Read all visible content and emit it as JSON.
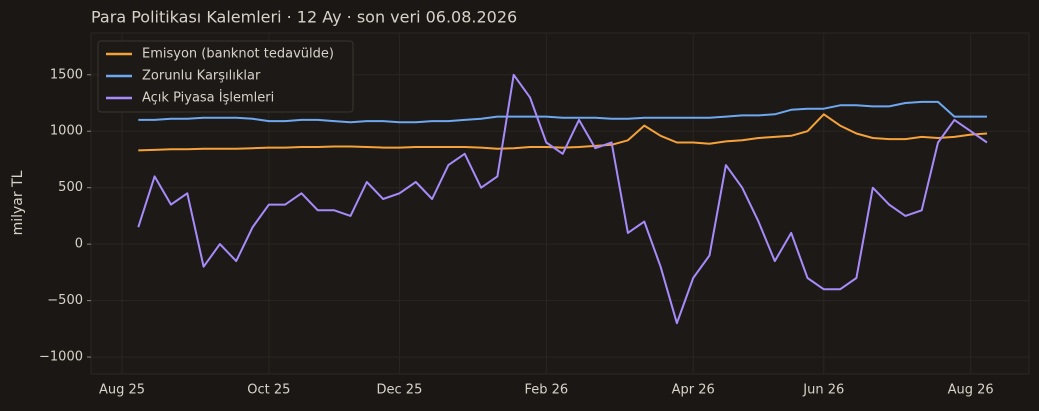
{
  "chart_data": {
    "type": "line",
    "title": "Para Politikası Kalemleri · 12 Ay · son veri 06.08.2026",
    "y_label": "milyar TL",
    "categories": [
      "Aug 25",
      null,
      null,
      null,
      null,
      null,
      null,
      null,
      null,
      "Oct 25",
      null,
      null,
      null,
      null,
      null,
      null,
      null,
      "Dec 25",
      null,
      null,
      null,
      null,
      null,
      null,
      null,
      null,
      "Feb 26",
      null,
      null,
      null,
      null,
      null,
      null,
      null,
      null,
      "Apr 26",
      null,
      null,
      null,
      null,
      null,
      null,
      null,
      "Jun 26",
      null,
      null,
      null,
      null,
      null,
      null,
      null,
      null,
      "Aug 26",
      null
    ],
    "series": [
      {
        "name": "Emisyon (banknot tedavülde)",
        "color": "#f5a23a",
        "values": [
          null,
          830,
          835,
          840,
          840,
          845,
          845,
          845,
          850,
          855,
          855,
          860,
          860,
          865,
          865,
          860,
          855,
          855,
          860,
          860,
          860,
          860,
          855,
          845,
          850,
          860,
          860,
          855,
          860,
          870,
          880,
          920,
          1050,
          960,
          900,
          900,
          890,
          910,
          920,
          940,
          950,
          960,
          1000,
          1150,
          1050,
          980,
          940,
          930,
          930,
          950,
          940,
          950,
          970,
          980
        ]
      },
      {
        "name": "Zorunlu Karşılıklar",
        "color": "#6ea8f0",
        "values": [
          null,
          1100,
          1100,
          1110,
          1110,
          1120,
          1120,
          1120,
          1110,
          1090,
          1090,
          1100,
          1100,
          1090,
          1080,
          1090,
          1090,
          1080,
          1080,
          1090,
          1090,
          1100,
          1110,
          1130,
          1130,
          1130,
          1130,
          1120,
          1120,
          1120,
          1110,
          1110,
          1120,
          1120,
          1120,
          1120,
          1120,
          1130,
          1140,
          1140,
          1150,
          1190,
          1200,
          1200,
          1230,
          1230,
          1220,
          1220,
          1250,
          1260,
          1260,
          1130,
          1130,
          1130
        ]
      },
      {
        "name": "Açık Piyasa İşlemleri",
        "color": "#a78bfa",
        "values": [
          null,
          150,
          600,
          350,
          450,
          -200,
          0,
          -150,
          150,
          350,
          350,
          450,
          300,
          300,
          250,
          550,
          400,
          450,
          550,
          400,
          700,
          800,
          500,
          600,
          1500,
          1300,
          900,
          800,
          1100,
          850,
          900,
          100,
          200,
          -200,
          -700,
          -300,
          -100,
          700,
          500,
          200,
          -150,
          100,
          -300,
          -400,
          -400,
          -300,
          500,
          350,
          250,
          300,
          900,
          1100,
          1000,
          900
        ]
      }
    ],
    "ylim": [
      -1150,
      1870
    ],
    "yticks": [
      {
        "value": -1000,
        "label": "−1000"
      },
      {
        "value": -500,
        "label": "−500"
      },
      0,
      500,
      1000,
      1500
    ],
    "grid": true,
    "legend": "upper-left"
  }
}
